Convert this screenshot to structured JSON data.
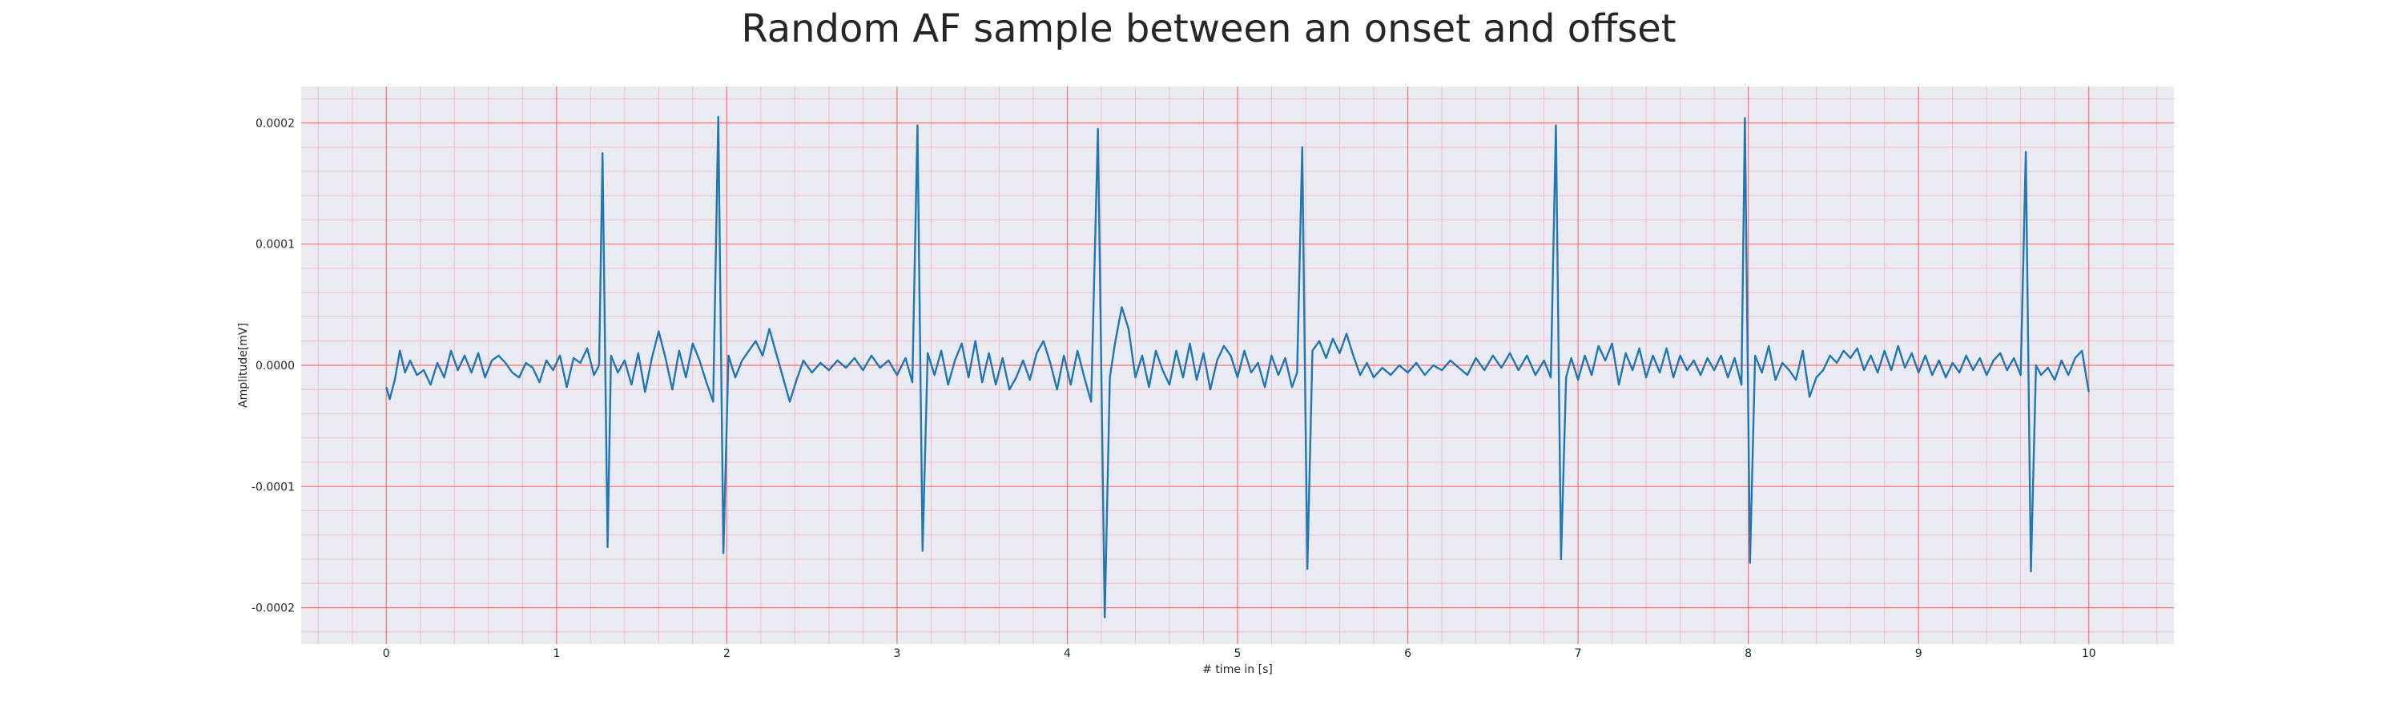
{
  "chart_data": {
    "type": "line",
    "title": "Random AF sample between an onset and offset",
    "xlabel": "# time in [s]",
    "ylabel": "Amplitude[mV]",
    "xlim": [
      -0.5,
      10.5
    ],
    "ylim": [
      -0.00023,
      0.00023
    ],
    "x_ticks": [
      0,
      1,
      2,
      3,
      4,
      5,
      6,
      7,
      8,
      9,
      10
    ],
    "x_tick_labels": [
      "0",
      "1",
      "2",
      "3",
      "4",
      "5",
      "6",
      "7",
      "8",
      "9",
      "10"
    ],
    "y_ticks": [
      0.0002,
      0.0001,
      0.0,
      -0.0001,
      -0.0002
    ],
    "y_tick_labels": [
      "0.0002",
      "0.0001",
      "0.0000",
      "-0.0001",
      "-0.0002"
    ],
    "grid": true,
    "minor_grid": true,
    "colors": {
      "background": "#eaeaf2",
      "major_grid": "#ff7070",
      "minor_grid": "#f4b8c4",
      "line": "#1f77b4"
    },
    "series": [
      {
        "values": [
          [
            0.0,
            -1.8e-05
          ],
          [
            0.02,
            -2.8e-05
          ],
          [
            0.05,
            -1.2e-05
          ],
          [
            0.08,
            1.2e-05
          ],
          [
            0.11,
            -6e-06
          ],
          [
            0.14,
            4e-06
          ],
          [
            0.18,
            -8e-06
          ],
          [
            0.22,
            -4e-06
          ],
          [
            0.26,
            -1.6e-05
          ],
          [
            0.3,
            2e-06
          ],
          [
            0.34,
            -1e-05
          ],
          [
            0.38,
            1.2e-05
          ],
          [
            0.42,
            -4e-06
          ],
          [
            0.46,
            8e-06
          ],
          [
            0.5,
            -6e-06
          ],
          [
            0.54,
            1e-05
          ],
          [
            0.58,
            -1e-05
          ],
          [
            0.62,
            4e-06
          ],
          [
            0.66,
            8e-06
          ],
          [
            0.7,
            2e-06
          ],
          [
            0.74,
            -6e-06
          ],
          [
            0.78,
            -1e-05
          ],
          [
            0.82,
            2e-06
          ],
          [
            0.86,
            -2e-06
          ],
          [
            0.9,
            -1.4e-05
          ],
          [
            0.94,
            4e-06
          ],
          [
            0.98,
            -4e-06
          ],
          [
            1.02,
            8e-06
          ],
          [
            1.06,
            -1.8e-05
          ],
          [
            1.1,
            6e-06
          ],
          [
            1.14,
            2e-06
          ],
          [
            1.18,
            1.4e-05
          ],
          [
            1.22,
            -8e-06
          ],
          [
            1.25,
            0.0
          ],
          [
            1.27,
            0.000175
          ],
          [
            1.3,
            -0.00015
          ],
          [
            1.32,
            8e-06
          ],
          [
            1.36,
            -6e-06
          ],
          [
            1.4,
            4e-06
          ],
          [
            1.44,
            -1.6e-05
          ],
          [
            1.48,
            1e-05
          ],
          [
            1.52,
            -2.2e-05
          ],
          [
            1.56,
            6e-06
          ],
          [
            1.6,
            2.8e-05
          ],
          [
            1.64,
            6e-06
          ],
          [
            1.68,
            -2e-05
          ],
          [
            1.72,
            1.2e-05
          ],
          [
            1.76,
            -1e-05
          ],
          [
            1.8,
            1.8e-05
          ],
          [
            1.84,
            4e-06
          ],
          [
            1.88,
            -1.4e-05
          ],
          [
            1.92,
            -3e-05
          ],
          [
            1.95,
            0.000205
          ],
          [
            1.98,
            -0.000155
          ],
          [
            2.01,
            8e-06
          ],
          [
            2.05,
            -1e-05
          ],
          [
            2.09,
            4e-06
          ],
          [
            2.13,
            1.2e-05
          ],
          [
            2.17,
            2e-05
          ],
          [
            2.21,
            8e-06
          ],
          [
            2.25,
            3e-05
          ],
          [
            2.29,
            1e-05
          ],
          [
            2.33,
            -1e-05
          ],
          [
            2.37,
            -3e-05
          ],
          [
            2.41,
            -1.2e-05
          ],
          [
            2.45,
            4e-06
          ],
          [
            2.5,
            -6e-06
          ],
          [
            2.55,
            2e-06
          ],
          [
            2.6,
            -4e-06
          ],
          [
            2.65,
            4e-06
          ],
          [
            2.7,
            -2e-06
          ],
          [
            2.75,
            6e-06
          ],
          [
            2.8,
            -4e-06
          ],
          [
            2.85,
            8e-06
          ],
          [
            2.9,
            -2e-06
          ],
          [
            2.95,
            4e-06
          ],
          [
            3.0,
            -8e-06
          ],
          [
            3.05,
            6e-06
          ],
          [
            3.09,
            -1.4e-05
          ],
          [
            3.12,
            0.000198
          ],
          [
            3.15,
            -0.000153
          ],
          [
            3.18,
            1e-05
          ],
          [
            3.22,
            -8e-06
          ],
          [
            3.26,
            1.2e-05
          ],
          [
            3.3,
            -1.6e-05
          ],
          [
            3.34,
            4e-06
          ],
          [
            3.38,
            1.8e-05
          ],
          [
            3.42,
            -1e-05
          ],
          [
            3.46,
            2e-05
          ],
          [
            3.5,
            -1.4e-05
          ],
          [
            3.54,
            1e-05
          ],
          [
            3.58,
            -1.6e-05
          ],
          [
            3.62,
            6e-06
          ],
          [
            3.66,
            -2e-05
          ],
          [
            3.7,
            -1e-05
          ],
          [
            3.74,
            4e-06
          ],
          [
            3.78,
            -1.2e-05
          ],
          [
            3.82,
            1e-05
          ],
          [
            3.86,
            2e-05
          ],
          [
            3.9,
            2e-06
          ],
          [
            3.94,
            -2e-05
          ],
          [
            3.98,
            8e-06
          ],
          [
            4.02,
            -1.6e-05
          ],
          [
            4.06,
            1.2e-05
          ],
          [
            4.1,
            -1e-05
          ],
          [
            4.14,
            -3e-05
          ],
          [
            4.18,
            0.000195
          ],
          [
            4.22,
            -0.000208
          ],
          [
            4.25,
            -1e-05
          ],
          [
            4.28,
            1.8e-05
          ],
          [
            4.32,
            4.8e-05
          ],
          [
            4.36,
            3e-05
          ],
          [
            4.4,
            -1e-05
          ],
          [
            4.44,
            8e-06
          ],
          [
            4.48,
            -1.8e-05
          ],
          [
            4.52,
            1.2e-05
          ],
          [
            4.56,
            -4e-06
          ],
          [
            4.6,
            -1.6e-05
          ],
          [
            4.64,
            1.2e-05
          ],
          [
            4.68,
            -1e-05
          ],
          [
            4.72,
            1.8e-05
          ],
          [
            4.76,
            -1.2e-05
          ],
          [
            4.8,
            1e-05
          ],
          [
            4.84,
            -2e-05
          ],
          [
            4.88,
            4e-06
          ],
          [
            4.92,
            1.6e-05
          ],
          [
            4.96,
            8e-06
          ],
          [
            5.0,
            -1e-05
          ],
          [
            5.04,
            1.2e-05
          ],
          [
            5.08,
            -6e-06
          ],
          [
            5.12,
            2e-06
          ],
          [
            5.16,
            -1.8e-05
          ],
          [
            5.2,
            8e-06
          ],
          [
            5.24,
            -8e-06
          ],
          [
            5.28,
            6e-06
          ],
          [
            5.32,
            -1.8e-05
          ],
          [
            5.35,
            -6e-06
          ],
          [
            5.38,
            0.00018
          ],
          [
            5.41,
            -0.000168
          ],
          [
            5.44,
            1.2e-05
          ],
          [
            5.48,
            2e-05
          ],
          [
            5.52,
            6e-06
          ],
          [
            5.56,
            2.2e-05
          ],
          [
            5.6,
            1e-05
          ],
          [
            5.64,
            2.6e-05
          ],
          [
            5.68,
            8e-06
          ],
          [
            5.72,
            -8e-06
          ],
          [
            5.76,
            2e-06
          ],
          [
            5.8,
            -1e-05
          ],
          [
            5.85,
            -2e-06
          ],
          [
            5.9,
            -8e-06
          ],
          [
            5.95,
            0.0
          ],
          [
            6.0,
            -6e-06
          ],
          [
            6.05,
            2e-06
          ],
          [
            6.1,
            -8e-06
          ],
          [
            6.15,
            0.0
          ],
          [
            6.2,
            -4e-06
          ],
          [
            6.25,
            4e-06
          ],
          [
            6.3,
            -2e-06
          ],
          [
            6.35,
            -8e-06
          ],
          [
            6.4,
            6e-06
          ],
          [
            6.45,
            -4e-06
          ],
          [
            6.5,
            8e-06
          ],
          [
            6.55,
            -2e-06
          ],
          [
            6.6,
            1e-05
          ],
          [
            6.65,
            -4e-06
          ],
          [
            6.7,
            8e-06
          ],
          [
            6.75,
            -8e-06
          ],
          [
            6.8,
            4e-06
          ],
          [
            6.84,
            -1e-05
          ],
          [
            6.87,
            0.000198
          ],
          [
            6.9,
            -0.00016
          ],
          [
            6.93,
            -1e-05
          ],
          [
            6.96,
            6e-06
          ],
          [
            7.0,
            -1.2e-05
          ],
          [
            7.04,
            8e-06
          ],
          [
            7.08,
            -8e-06
          ],
          [
            7.12,
            1.6e-05
          ],
          [
            7.16,
            4e-06
          ],
          [
            7.2,
            1.8e-05
          ],
          [
            7.24,
            -1.6e-05
          ],
          [
            7.28,
            1e-05
          ],
          [
            7.32,
            -4e-06
          ],
          [
            7.36,
            1.4e-05
          ],
          [
            7.4,
            -1e-05
          ],
          [
            7.44,
            8e-06
          ],
          [
            7.48,
            -6e-06
          ],
          [
            7.52,
            1.4e-05
          ],
          [
            7.56,
            -1e-05
          ],
          [
            7.6,
            8e-06
          ],
          [
            7.64,
            -4e-06
          ],
          [
            7.68,
            4e-06
          ],
          [
            7.72,
            -8e-06
          ],
          [
            7.76,
            6e-06
          ],
          [
            7.8,
            -4e-06
          ],
          [
            7.84,
            8e-06
          ],
          [
            7.88,
            -1e-05
          ],
          [
            7.92,
            6e-06
          ],
          [
            7.96,
            -1.6e-05
          ],
          [
            7.98,
            0.000204
          ],
          [
            8.01,
            -0.000163
          ],
          [
            8.04,
            8e-06
          ],
          [
            8.08,
            -6e-06
          ],
          [
            8.12,
            1.6e-05
          ],
          [
            8.16,
            -1.2e-05
          ],
          [
            8.2,
            2e-06
          ],
          [
            8.24,
            -4e-06
          ],
          [
            8.28,
            -1.2e-05
          ],
          [
            8.32,
            1.2e-05
          ],
          [
            8.36,
            -2.6e-05
          ],
          [
            8.4,
            -1e-05
          ],
          [
            8.44,
            -4e-06
          ],
          [
            8.48,
            8e-06
          ],
          [
            8.52,
            2e-06
          ],
          [
            8.56,
            1.2e-05
          ],
          [
            8.6,
            6e-06
          ],
          [
            8.64,
            1.4e-05
          ],
          [
            8.68,
            -4e-06
          ],
          [
            8.72,
            8e-06
          ],
          [
            8.76,
            -6e-06
          ],
          [
            8.8,
            1.2e-05
          ],
          [
            8.84,
            -4e-06
          ],
          [
            8.88,
            1.6e-05
          ],
          [
            8.92,
            -2e-06
          ],
          [
            8.96,
            1e-05
          ],
          [
            9.0,
            -6e-06
          ],
          [
            9.04,
            8e-06
          ],
          [
            9.08,
            -8e-06
          ],
          [
            9.12,
            4e-06
          ],
          [
            9.16,
            -1e-05
          ],
          [
            9.2,
            2e-06
          ],
          [
            9.24,
            -6e-06
          ],
          [
            9.28,
            8e-06
          ],
          [
            9.32,
            -4e-06
          ],
          [
            9.36,
            6e-06
          ],
          [
            9.4,
            -8e-06
          ],
          [
            9.44,
            4e-06
          ],
          [
            9.48,
            1e-05
          ],
          [
            9.52,
            -4e-06
          ],
          [
            9.56,
            6e-06
          ],
          [
            9.6,
            -8e-06
          ],
          [
            9.63,
            0.000176
          ],
          [
            9.66,
            -0.00017
          ],
          [
            9.69,
            0.0
          ],
          [
            9.72,
            -8e-06
          ],
          [
            9.76,
            -2e-06
          ],
          [
            9.8,
            -1.2e-05
          ],
          [
            9.84,
            4e-06
          ],
          [
            9.88,
            -8e-06
          ],
          [
            9.92,
            6e-06
          ],
          [
            9.96,
            1.2e-05
          ],
          [
            10.0,
            -2.2e-05
          ]
        ]
      }
    ]
  }
}
